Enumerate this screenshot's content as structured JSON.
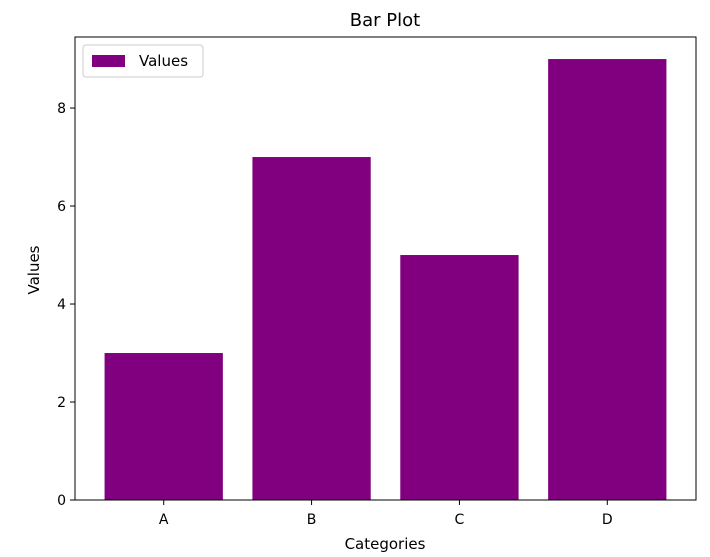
{
  "chart_data": {
    "type": "bar",
    "title": "Bar Plot",
    "xlabel": "Categories",
    "ylabel": "Values",
    "categories": [
      "A",
      "B",
      "C",
      "D"
    ],
    "series": [
      {
        "name": "Values",
        "values": [
          3,
          7,
          5,
          9
        ],
        "color": "#800080"
      }
    ],
    "ylim": [
      0,
      9.45
    ],
    "yticks": [
      0,
      2,
      4,
      6,
      8
    ],
    "ytick_labels": [
      "0",
      "2",
      "4",
      "6",
      "8"
    ],
    "grid": false,
    "legend": {
      "position": "top-left",
      "entries": [
        "Values"
      ]
    }
  }
}
